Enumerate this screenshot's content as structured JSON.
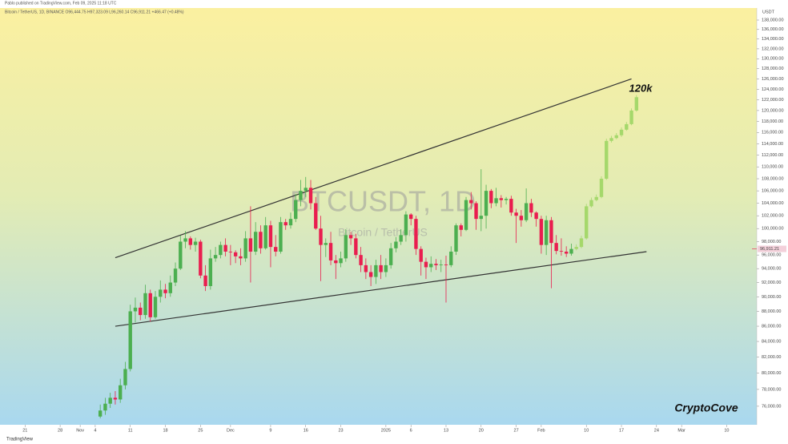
{
  "header": {
    "publisher": "Pablo published on TradingView.com, Feb 09, 2025 11:18 UTC",
    "symbol_line": "Bitcoin / TetherUS, 1D, BINANCE O96,444.75 H97,323.09 L96,260.14 C96,911.21 +466.47 (+0.48%)"
  },
  "footer": {
    "brand": "TradingView"
  },
  "chart_data": {
    "type": "candlestick",
    "watermark": "BTCUSDT, 1D",
    "watermark_subtitle": "Bitcoin / TetherUS",
    "axis_unit": "USDT",
    "annotations": [
      "120k",
      "CryptoCove"
    ],
    "log_scale": true,
    "up_color": "#4caf50",
    "down_color": "#e91e4f",
    "projection_color": "#a5d86b",
    "trendline_color": "#333333",
    "xlim": [
      -5,
      146
    ],
    "xticks": [
      {
        "value": 0,
        "label": "21"
      },
      {
        "value": 7,
        "label": "28"
      },
      {
        "value": 11,
        "label": "Nov"
      },
      {
        "value": 14,
        "label": "4"
      },
      {
        "value": 21,
        "label": "11"
      },
      {
        "value": 28,
        "label": "18"
      },
      {
        "value": 35,
        "label": "25"
      },
      {
        "value": 41,
        "label": "Dec"
      },
      {
        "value": 49,
        "label": "9"
      },
      {
        "value": 56,
        "label": "16"
      },
      {
        "value": 63,
        "label": "23"
      },
      {
        "value": 72,
        "label": "2025"
      },
      {
        "value": 77,
        "label": "6"
      },
      {
        "value": 84,
        "label": "13"
      },
      {
        "value": 91,
        "label": "20"
      },
      {
        "value": 98,
        "label": "27"
      },
      {
        "value": 103,
        "label": "Feb"
      },
      {
        "value": 112,
        "label": "10"
      },
      {
        "value": 119,
        "label": "17"
      },
      {
        "value": 126,
        "label": "24"
      },
      {
        "value": 131,
        "label": "Mar"
      },
      {
        "value": 140,
        "label": "10"
      }
    ],
    "ylim": [
      74500,
      138000
    ],
    "yticks": [
      {
        "value": 76000,
        "label": "76,000.00"
      },
      {
        "value": 78000,
        "label": "78,000.00"
      },
      {
        "value": 80000,
        "label": "80,000.00"
      },
      {
        "value": 82000,
        "label": "82,000.00"
      },
      {
        "value": 84000,
        "label": "84,000.00"
      },
      {
        "value": 86000,
        "label": "86,000.00"
      },
      {
        "value": 88000,
        "label": "88,000.00"
      },
      {
        "value": 90000,
        "label": "90,000.00"
      },
      {
        "value": 92000,
        "label": "92,000.00"
      },
      {
        "value": 94000,
        "label": "94,000.00"
      },
      {
        "value": 96000,
        "label": "96,000.00"
      },
      {
        "value": 98000,
        "label": "98,000.00"
      },
      {
        "value": 100000,
        "label": "100,000.00"
      },
      {
        "value": 102000,
        "label": "102,000.00"
      },
      {
        "value": 104000,
        "label": "104,000.00"
      },
      {
        "value": 106000,
        "label": "106,000.00"
      },
      {
        "value": 108000,
        "label": "108,000.00"
      },
      {
        "value": 110000,
        "label": "110,000.00"
      },
      {
        "value": 112000,
        "label": "112,000.00"
      },
      {
        "value": 114000,
        "label": "114,000.00"
      },
      {
        "value": 116000,
        "label": "116,000.00"
      },
      {
        "value": 118000,
        "label": "118,000.00"
      },
      {
        "value": 120000,
        "label": "120,000.00"
      },
      {
        "value": 122000,
        "label": "122,000.00"
      },
      {
        "value": 124000,
        "label": "124,000.00"
      },
      {
        "value": 126000,
        "label": "126,000.00"
      },
      {
        "value": 128000,
        "label": "128,000.00"
      },
      {
        "value": 130000,
        "label": "130,000.00"
      },
      {
        "value": 132000,
        "label": "132,000.00"
      },
      {
        "value": 134000,
        "label": "134,000.00"
      },
      {
        "value": 136000,
        "label": "136,000.00"
      },
      {
        "value": 138000,
        "label": "138,000.00"
      }
    ],
    "last_price": {
      "value": 96911.21,
      "label": "96,911.21"
    },
    "candles": {
      "x": [
        15,
        16,
        17,
        18,
        19,
        20,
        21,
        22,
        23,
        24,
        25,
        26,
        27,
        28,
        29,
        30,
        31,
        32,
        33,
        34,
        35,
        36,
        37,
        38,
        39,
        40,
        41,
        42,
        43,
        44,
        45,
        46,
        47,
        48,
        49,
        50,
        51,
        52,
        53,
        54,
        55,
        56,
        57,
        58,
        59,
        60,
        61,
        62,
        63,
        64,
        65,
        66,
        67,
        68,
        69,
        70,
        71,
        72,
        73,
        74,
        75,
        76,
        77,
        78,
        79,
        80,
        81,
        82,
        83,
        84,
        85,
        86,
        87,
        88,
        89,
        90,
        91,
        92,
        93,
        94,
        95,
        96,
        97,
        98,
        99,
        100,
        101,
        102,
        103,
        104,
        105,
        106,
        107,
        108,
        109
      ],
      "open": [
        74800,
        75500,
        76300,
        77000,
        76800,
        78500,
        80500,
        88000,
        88500,
        87500,
        90500,
        87200,
        90000,
        91000,
        90500,
        92000,
        94000,
        98000,
        98500,
        97500,
        98000,
        93000,
        91500,
        95500,
        96000,
        97500,
        96500,
        96400,
        95800,
        95500,
        98500,
        96500,
        99500,
        97000,
        100500,
        97200,
        96500,
        101000,
        100500,
        101500,
        104500,
        106000,
        106500,
        104000,
        100000,
        97500,
        97800,
        95200,
        94800,
        95500,
        99000,
        98500,
        96000,
        94500,
        93500,
        92800,
        94500,
        93500,
        94500,
        97000,
        98000,
        99000,
        102200,
        101500,
        96900,
        95000,
        94200,
        94700,
        94500,
        94600,
        94500,
        96500,
        100500,
        99800,
        104500,
        104000,
        101500,
        102000,
        106000,
        104000,
        104800,
        104500,
        104700,
        102500,
        102000,
        101300,
        104000,
        102500,
        101500,
        97500,
        101300,
        97800,
        96600,
        96500,
        96200
      ],
      "high": [
        76200,
        77000,
        77600,
        77800,
        79300,
        81400,
        88900,
        89900,
        89200,
        91700,
        91000,
        90800,
        92300,
        91800,
        93000,
        94900,
        98900,
        99600,
        98800,
        98600,
        98300,
        94500,
        96800,
        97200,
        98000,
        98500,
        97500,
        96700,
        97000,
        99600,
        103500,
        101000,
        100500,
        101800,
        101200,
        99000,
        101800,
        101500,
        102500,
        105500,
        107800,
        108300,
        107800,
        105000,
        102000,
        98500,
        99500,
        96000,
        96500,
        99900,
        99500,
        99200,
        97200,
        95500,
        94500,
        95300,
        96000,
        95500,
        97800,
        98700,
        99900,
        102700,
        102400,
        102000,
        97300,
        95600,
        95800,
        95400,
        95300,
        95900,
        97300,
        100800,
        100800,
        105000,
        105800,
        104300,
        109600,
        107000,
        106300,
        106500,
        105300,
        105000,
        105200,
        103100,
        102900,
        106400,
        104700,
        102700,
        102000,
        102000,
        101800,
        99000,
        98500,
        97300,
        97700
      ],
      "low": [
        74600,
        75000,
        75800,
        76200,
        76400,
        78000,
        80200,
        86500,
        86800,
        87000,
        86600,
        87000,
        89200,
        89800,
        90000,
        91500,
        93800,
        97000,
        96800,
        96500,
        92600,
        90800,
        91000,
        95000,
        95500,
        95800,
        94500,
        94800,
        94500,
        95000,
        92000,
        96000,
        96200,
        96800,
        94200,
        95800,
        96200,
        99800,
        100000,
        101000,
        103500,
        105000,
        103000,
        99800,
        92200,
        95700,
        94500,
        92500,
        94200,
        95000,
        97500,
        95500,
        93500,
        92500,
        91500,
        91800,
        92500,
        92800,
        94000,
        96400,
        97500,
        98000,
        100500,
        96000,
        93000,
        92500,
        93500,
        93800,
        93500,
        89200,
        94200,
        96000,
        98800,
        99600,
        103000,
        99800,
        99600,
        100000,
        103200,
        103500,
        103300,
        103800,
        102000,
        97800,
        100300,
        101000,
        101800,
        100300,
        96200,
        96000,
        91200,
        96100,
        95900,
        95700,
        95900
      ],
      "close": [
        75500,
        76300,
        77000,
        76800,
        78500,
        80500,
        88000,
        88500,
        87500,
        90500,
        87200,
        90000,
        91000,
        90500,
        92000,
        94000,
        98000,
        98500,
        97500,
        98000,
        93000,
        91500,
        95500,
        96000,
        97500,
        96500,
        96400,
        95800,
        95500,
        98500,
        96500,
        99500,
        97000,
        100500,
        97200,
        96500,
        101000,
        100500,
        101500,
        104500,
        106000,
        106500,
        104000,
        100000,
        97500,
        97800,
        95200,
        94800,
        95500,
        99000,
        98500,
        96000,
        94500,
        93500,
        92800,
        94500,
        93500,
        94500,
        97000,
        98000,
        99000,
        102200,
        101500,
        96900,
        95000,
        94200,
        94700,
        94500,
        94600,
        94500,
        96500,
        100500,
        99800,
        104500,
        104000,
        101500,
        102000,
        106000,
        104000,
        104800,
        104500,
        104700,
        102500,
        102000,
        101300,
        104000,
        102500,
        101500,
        97500,
        101300,
        97800,
        96600,
        96500,
        96200,
        96900
      ]
    },
    "projection": {
      "x": [
        110,
        111,
        112,
        113,
        114,
        115,
        116,
        117,
        118,
        119,
        120,
        121,
        122
      ],
      "open": [
        96900,
        97200,
        98500,
        103500,
        104500,
        105000,
        108000,
        114500,
        115000,
        115500,
        116500,
        117500,
        120000
      ],
      "high": [
        97600,
        98900,
        103900,
        104900,
        105400,
        108400,
        114900,
        115400,
        115900,
        116900,
        117900,
        120400,
        122900
      ],
      "low": [
        96700,
        97000,
        98300,
        103300,
        104300,
        104800,
        107800,
        114200,
        114800,
        115200,
        116300,
        117300,
        119800
      ],
      "close": [
        97200,
        98500,
        103500,
        104500,
        105000,
        108000,
        114500,
        115000,
        115500,
        116500,
        117500,
        120000,
        122500
      ]
    },
    "trendlines": [
      {
        "x": [
          18,
          121
        ],
        "y": [
          95600,
          126000
        ]
      },
      {
        "x": [
          18,
          124
        ],
        "y": [
          86000,
          96500
        ]
      }
    ]
  }
}
